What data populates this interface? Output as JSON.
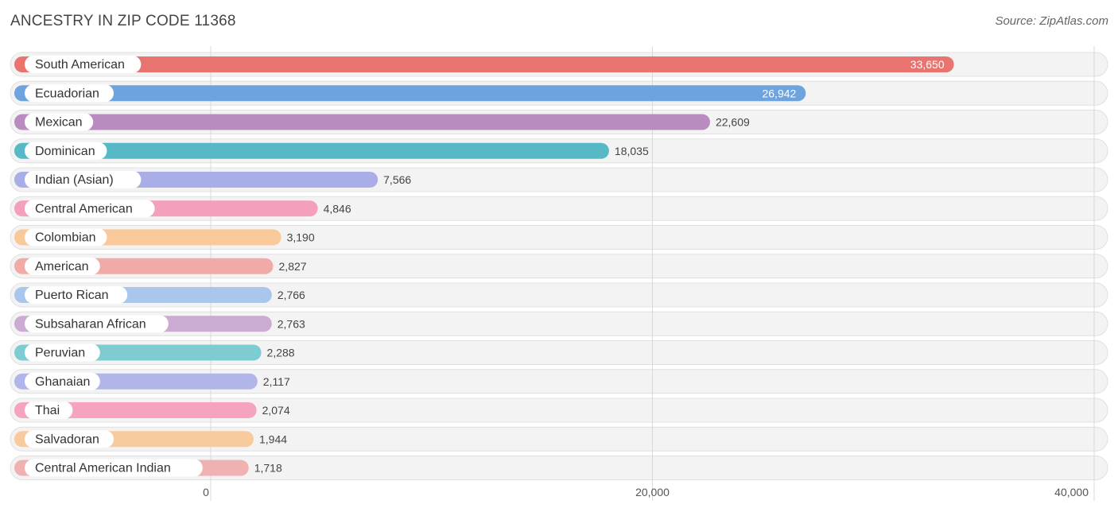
{
  "header": {
    "title": "ANCESTRY IN ZIP CODE 11368",
    "source": "Source: ZipAtlas.com"
  },
  "chart_data": {
    "type": "bar",
    "orientation": "horizontal",
    "title": "ANCESTRY IN ZIP CODE 11368",
    "xlim": [
      0,
      40000
    ],
    "ticks": [
      0,
      20000,
      40000
    ],
    "tick_labels": [
      "0",
      "20,000",
      "40,000"
    ],
    "grid": true,
    "categories": [
      "South American",
      "Ecuadorian",
      "Mexican",
      "Dominican",
      "Indian (Asian)",
      "Central American",
      "Colombian",
      "American",
      "Puerto Rican",
      "Subsaharan African",
      "Peruvian",
      "Ghanaian",
      "Thai",
      "Salvadoran",
      "Central American Indian"
    ],
    "values": [
      33650,
      26942,
      22609,
      18035,
      7566,
      4846,
      3190,
      2827,
      2766,
      2763,
      2288,
      2117,
      2074,
      1944,
      1718
    ],
    "value_labels": [
      "33,650",
      "26,942",
      "22,609",
      "18,035",
      "7,566",
      "4,846",
      "3,190",
      "2,827",
      "2,766",
      "2,763",
      "2,288",
      "2,117",
      "2,074",
      "1,944",
      "1,718"
    ],
    "colors": [
      "#e8736f",
      "#6fa3dd",
      "#b98cc0",
      "#57b9c5",
      "#a9aee6",
      "#f4a0bc",
      "#f9c99a",
      "#f0aaa8",
      "#a9c6ec",
      "#ccabd2",
      "#7cccd2",
      "#b1b5ea",
      "#f6a3bf",
      "#f8cb9f",
      "#f0b2b0"
    ]
  }
}
